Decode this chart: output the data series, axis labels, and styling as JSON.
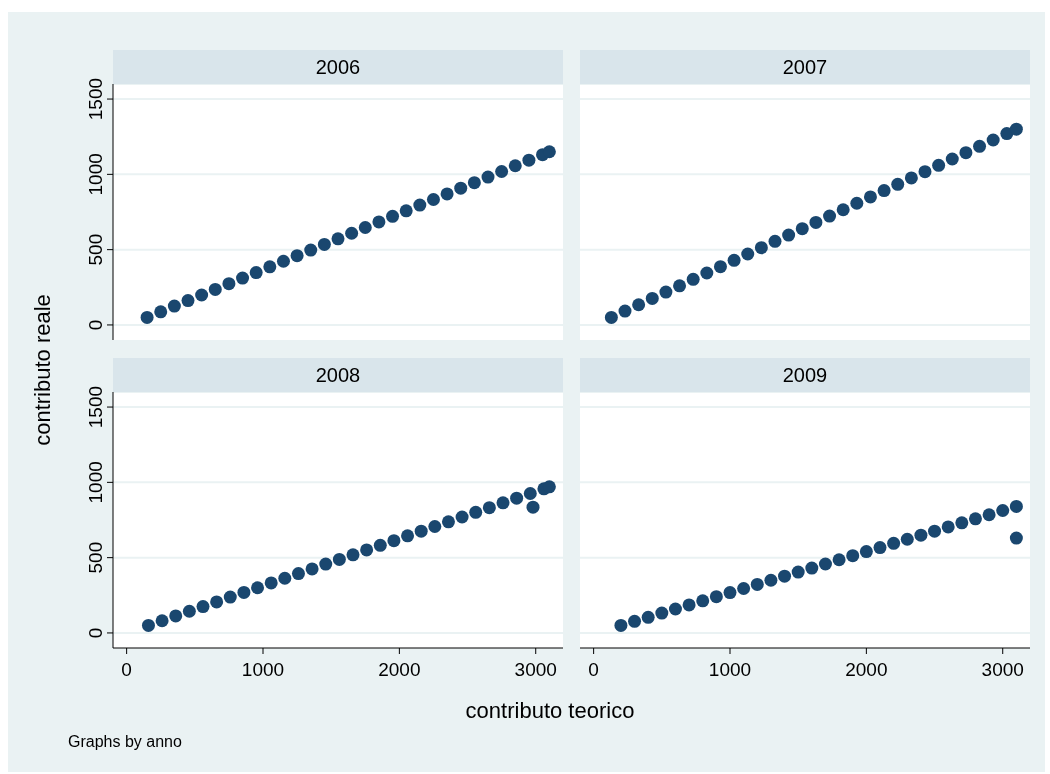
{
  "chart_data": [
    {
      "type": "scatter",
      "title": "2006",
      "ylabel": "contributo reale",
      "color": "#1a476f",
      "marker": "circle",
      "grid": "y",
      "tick_labels": "y",
      "xlim": [
        -100,
        3200
      ],
      "ylim": [
        -100,
        1600
      ],
      "xticks": [
        0,
        1000,
        2000,
        3000
      ],
      "yticks": [
        0,
        500,
        1000,
        1500
      ],
      "x": [
        150,
        250,
        350,
        450,
        550,
        650,
        750,
        850,
        950,
        1050,
        1150,
        1250,
        1350,
        1450,
        1550,
        1650,
        1750,
        1850,
        1950,
        2050,
        2150,
        2250,
        2350,
        2450,
        2550,
        2650,
        2750,
        2850,
        2950,
        3050,
        3100
      ],
      "values": [
        50,
        87,
        125,
        162,
        199,
        236,
        274,
        311,
        348,
        386,
        423,
        460,
        497,
        535,
        572,
        609,
        647,
        684,
        721,
        758,
        796,
        833,
        870,
        908,
        945,
        982,
        1019,
        1057,
        1094,
        1131,
        1150
      ]
    },
    {
      "type": "scatter",
      "title": "2007",
      "color": "#1a476f",
      "marker": "circle",
      "grid": "y",
      "tick_labels": false,
      "xlim": [
        -100,
        3200
      ],
      "ylim": [
        -100,
        1600
      ],
      "xticks": [
        0,
        1000,
        2000,
        3000
      ],
      "yticks": [
        0,
        500,
        1000,
        1500
      ],
      "x": [
        130,
        230,
        330,
        430,
        530,
        630,
        730,
        830,
        930,
        1030,
        1130,
        1230,
        1330,
        1430,
        1530,
        1630,
        1730,
        1830,
        1930,
        2030,
        2130,
        2230,
        2330,
        2430,
        2530,
        2630,
        2730,
        2830,
        2930,
        3030,
        3100
      ],
      "values": [
        50,
        92,
        134,
        176,
        218,
        260,
        303,
        345,
        387,
        429,
        471,
        513,
        555,
        597,
        639,
        681,
        723,
        765,
        808,
        850,
        892,
        934,
        976,
        1018,
        1060,
        1102,
        1144,
        1186,
        1228,
        1271,
        1300
      ]
    },
    {
      "type": "scatter",
      "title": "2008",
      "xlabel": "contributo teorico",
      "annotations": [
        "Graphs by anno"
      ],
      "color": "#1a476f",
      "marker": "circle",
      "grid": "y",
      "xlim": [
        -100,
        3200
      ],
      "ylim": [
        -100,
        1600
      ],
      "xticks": [
        0,
        1000,
        2000,
        3000
      ],
      "yticks": [
        0,
        500,
        1000,
        1500
      ],
      "x": [
        160,
        260,
        360,
        460,
        560,
        660,
        760,
        860,
        960,
        1060,
        1160,
        1260,
        1360,
        1460,
        1560,
        1660,
        1760,
        1860,
        1960,
        2060,
        2160,
        2260,
        2360,
        2460,
        2560,
        2660,
        2760,
        2860,
        2960,
        3060,
        3100,
        2980
      ],
      "values": [
        50,
        81,
        113,
        144,
        175,
        206,
        238,
        269,
        300,
        332,
        363,
        394,
        425,
        457,
        488,
        519,
        551,
        582,
        613,
        645,
        676,
        707,
        738,
        770,
        801,
        832,
        864,
        895,
        926,
        957,
        970,
        835
      ]
    },
    {
      "type": "scatter",
      "title": "2009",
      "color": "#1a476f",
      "marker": "circle",
      "grid": "y",
      "tick_labels": "x",
      "xlim": [
        -100,
        3200
      ],
      "ylim": [
        -100,
        1600
      ],
      "xticks": [
        0,
        1000,
        2000,
        3000
      ],
      "yticks": [
        0,
        500,
        1000,
        1500
      ],
      "x": [
        200,
        300,
        400,
        500,
        600,
        700,
        800,
        900,
        1000,
        1100,
        1200,
        1300,
        1400,
        1500,
        1600,
        1700,
        1800,
        1900,
        2000,
        2100,
        2200,
        2300,
        2400,
        2500,
        2600,
        2700,
        2800,
        2900,
        3000,
        3100,
        3100
      ],
      "values": [
        50,
        77,
        104,
        132,
        159,
        186,
        213,
        241,
        268,
        295,
        322,
        350,
        377,
        404,
        431,
        458,
        486,
        513,
        540,
        567,
        595,
        622,
        649,
        676,
        704,
        731,
        758,
        785,
        813,
        840,
        630
      ]
    }
  ]
}
